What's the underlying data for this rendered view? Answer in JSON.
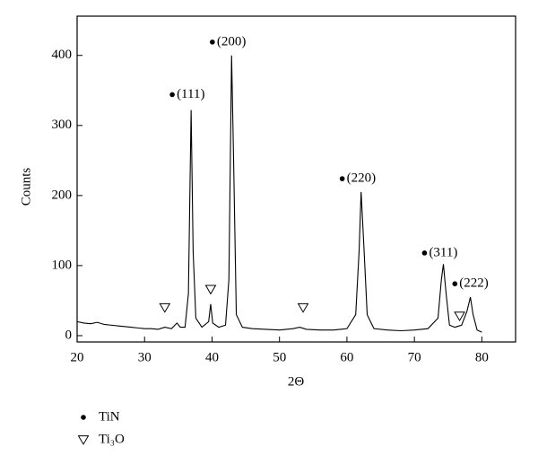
{
  "chart_data": {
    "type": "line",
    "x_label": "2Θ",
    "y_label": "Counts",
    "x": [
      20,
      21,
      22,
      23,
      24,
      25,
      26,
      27,
      28,
      29,
      30,
      31,
      32,
      33,
      34,
      34.8,
      35.3,
      36,
      36.5,
      36.9,
      37.2,
      37.6,
      38.5,
      39.5,
      39.8,
      40.1,
      41,
      42,
      42.5,
      42.9,
      43.2,
      43.6,
      44.5,
      46,
      48,
      50,
      52,
      53,
      54,
      56,
      58,
      60,
      61.3,
      61.8,
      62.1,
      62.5,
      63,
      64,
      66,
      68,
      70,
      72,
      73.5,
      74,
      74.3,
      74.7,
      75.2,
      76,
      77,
      77.8,
      78.3,
      78.7,
      79.3,
      80
    ],
    "series": [
      {
        "color": "#000000",
        "values": [
          20,
          18,
          17,
          19,
          16,
          15,
          14,
          13,
          12,
          11,
          10,
          10,
          9,
          12,
          10,
          18,
          12,
          12,
          60,
          322,
          120,
          25,
          12,
          20,
          45,
          18,
          12,
          15,
          80,
          400,
          250,
          30,
          12,
          10,
          9,
          8,
          10,
          12,
          9,
          8,
          8,
          10,
          30,
          120,
          205,
          130,
          30,
          10,
          8,
          7,
          8,
          10,
          25,
          80,
          102,
          60,
          15,
          12,
          15,
          35,
          55,
          30,
          8,
          5
        ]
      }
    ],
    "xlim": [
      20,
      85
    ],
    "ylim": [
      -9,
      456
    ],
    "xticks": [
      20,
      30,
      40,
      50,
      60,
      70,
      80
    ],
    "yticks": [
      0,
      100,
      200,
      300,
      400
    ],
    "annotations": [
      {
        "x": 34.1,
        "y": 344,
        "label": "(111)",
        "marker": "dot"
      },
      {
        "x": 40.05,
        "y": 419,
        "label": "(200)",
        "marker": "dot"
      },
      {
        "x": 59.3,
        "y": 224,
        "label": "(220)",
        "marker": "dot"
      },
      {
        "x": 71.5,
        "y": 118,
        "label": "(311)",
        "marker": "dot"
      },
      {
        "x": 76.0,
        "y": 74,
        "label": "(222)",
        "marker": "dot"
      },
      {
        "x": 33.0,
        "y": 40,
        "marker": "triangle"
      },
      {
        "x": 39.8,
        "y": 66,
        "marker": "triangle"
      },
      {
        "x": 53.5,
        "y": 40,
        "marker": "triangle"
      },
      {
        "x": 76.7,
        "y": 28,
        "marker": "triangle"
      }
    ],
    "legend": [
      {
        "label": "TiN",
        "marker": "dot"
      },
      {
        "label": "Ti₃O",
        "marker": "triangle"
      }
    ]
  }
}
